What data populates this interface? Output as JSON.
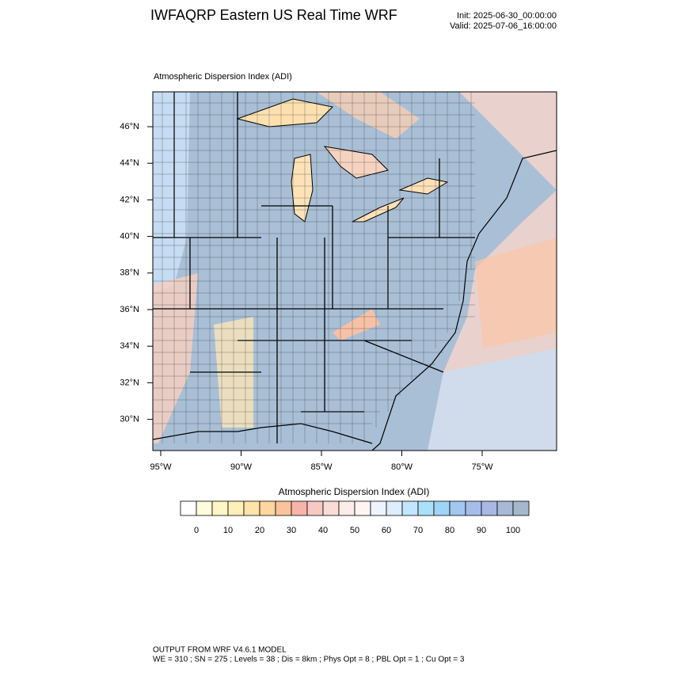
{
  "header": {
    "title": "IWFAQRP Eastern US Real Time WRF",
    "init": "Init: 2025-06-30_00:00:00",
    "valid": "Valid: 2025-07-06_16:00:00"
  },
  "map": {
    "subtitle": "Atmospheric Dispersion Index   (ADI)",
    "lat_labels": [
      "46°N",
      "44°N",
      "42°N",
      "40°N",
      "38°N",
      "36°N",
      "34°N",
      "32°N",
      "30°N"
    ],
    "lon_labels": [
      "95°W",
      "90°W",
      "85°W",
      "80°W",
      "75°W"
    ]
  },
  "colorbar": {
    "title": "Atmospheric Dispersion Index  (ADI)",
    "ticks": [
      0,
      10,
      20,
      30,
      40,
      50,
      60,
      70,
      80,
      90,
      100
    ],
    "colors": [
      "#ffffff",
      "#fffbdc",
      "#fff6c8",
      "#ffefb8",
      "#ffe3a8",
      "#ffd6a0",
      "#fbc29c",
      "#f7b4a8",
      "#f8c8c2",
      "#fadcd6",
      "#fdecea",
      "#fff4f4",
      "#eef4ff",
      "#dceeff",
      "#c2e6fb",
      "#ace0fa",
      "#9fd4f6",
      "#a2c6f0",
      "#a6bdeb",
      "#a8b8e4",
      "#a6bad6",
      "#a4b8cc"
    ]
  },
  "footer": {
    "line1": "OUTPUT FROM WRF V4.6.1 MODEL",
    "line2": "WE = 310 ; SN = 275 ; Levels = 38 ; Dis = 8km ; Phys Opt = 8 ; PBL Opt = 1 ; Cu Opt = 3"
  }
}
